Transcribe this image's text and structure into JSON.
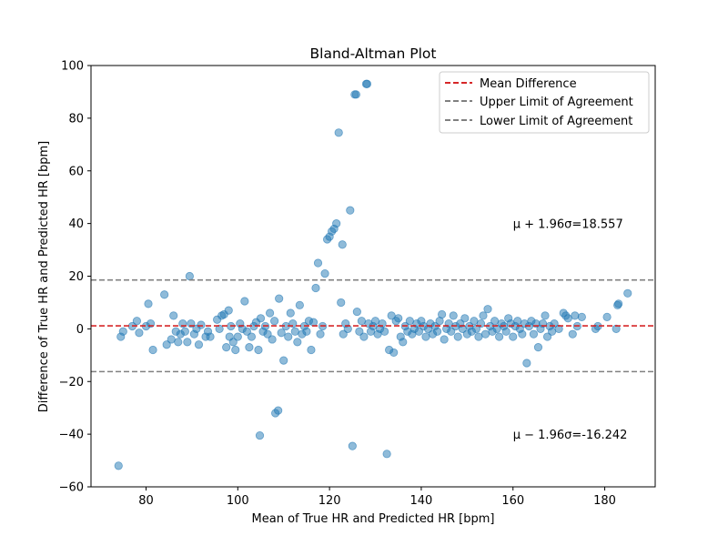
{
  "chart_data": {
    "type": "scatter",
    "title": "Bland-Altman Plot",
    "xlabel": "Mean of True HR and Predicted HR [bpm]",
    "ylabel": "Difference of True HR and Predicted HR [bpm]",
    "xlim": [
      68,
      191
    ],
    "ylim": [
      -60,
      100
    ],
    "xticks": [
      80,
      100,
      120,
      140,
      160,
      180
    ],
    "yticks": [
      -60,
      -40,
      -20,
      0,
      20,
      40,
      60,
      80,
      100
    ],
    "grid": false,
    "legend_position": "top-right",
    "point_color": "#1f77b4",
    "point_alpha": 0.5,
    "lines": [
      {
        "name": "Mean Difference",
        "y": 1.157,
        "color": "#d62728",
        "style": "dashed"
      },
      {
        "name": "Upper Limit of Agreement",
        "y": 18.557,
        "color": "#808080",
        "style": "dashed"
      },
      {
        "name": "Lower Limit of Agreement",
        "y": -16.242,
        "color": "#808080",
        "style": "dashed"
      }
    ],
    "annotations": [
      {
        "text_prefix": "μ + 1.96σ=",
        "value": "18.557",
        "x": 160,
        "y": 40
      },
      {
        "text_prefix": "μ − 1.96σ=",
        "value": "-16.242",
        "x": 160,
        "y": -40
      }
    ],
    "points": [
      [
        74,
        -52
      ],
      [
        74.5,
        -3
      ],
      [
        75,
        -1
      ],
      [
        77,
        1
      ],
      [
        78,
        3
      ],
      [
        78.5,
        -1.5
      ],
      [
        80,
        1
      ],
      [
        80.5,
        9.5
      ],
      [
        81,
        2
      ],
      [
        81.5,
        -8
      ],
      [
        84,
        13
      ],
      [
        84.5,
        -6
      ],
      [
        85.5,
        -4
      ],
      [
        86,
        5
      ],
      [
        86.5,
        -1
      ],
      [
        87,
        -5
      ],
      [
        87.5,
        -2
      ],
      [
        88,
        2
      ],
      [
        88.5,
        -1
      ],
      [
        89,
        -5
      ],
      [
        89.5,
        20
      ],
      [
        89.8,
        2
      ],
      [
        90.5,
        -2
      ],
      [
        91,
        0
      ],
      [
        91.5,
        -6
      ],
      [
        92,
        1.5
      ],
      [
        93,
        -3
      ],
      [
        93.5,
        -1
      ],
      [
        94,
        -3
      ],
      [
        95.5,
        3.5
      ],
      [
        96,
        0
      ],
      [
        96.5,
        5
      ],
      [
        97,
        5.5
      ],
      [
        97.5,
        -7
      ],
      [
        98,
        7
      ],
      [
        98.2,
        -3
      ],
      [
        98.5,
        1
      ],
      [
        99,
        -5
      ],
      [
        99.5,
        -8
      ],
      [
        100,
        -3
      ],
      [
        100.5,
        2
      ],
      [
        101,
        0
      ],
      [
        101.5,
        10.5
      ],
      [
        102,
        -1
      ],
      [
        102.5,
        -7
      ],
      [
        103,
        -3
      ],
      [
        103.5,
        1
      ],
      [
        104,
        2.5
      ],
      [
        104.5,
        -8
      ],
      [
        104.8,
        -40.5
      ],
      [
        105,
        4
      ],
      [
        105.5,
        -1
      ],
      [
        106,
        1
      ],
      [
        106.5,
        -2
      ],
      [
        107,
        6
      ],
      [
        107.5,
        -4
      ],
      [
        108,
        3
      ],
      [
        108.2,
        -32
      ],
      [
        108.8,
        -31
      ],
      [
        109,
        11.5
      ],
      [
        109.5,
        -1.5
      ],
      [
        110,
        -12
      ],
      [
        110.5,
        1
      ],
      [
        111,
        -3
      ],
      [
        111.5,
        6
      ],
      [
        112,
        2
      ],
      [
        112.5,
        -1
      ],
      [
        113,
        -5
      ],
      [
        113.5,
        9
      ],
      [
        114,
        -2
      ],
      [
        114.5,
        1
      ],
      [
        115,
        -1
      ],
      [
        115.5,
        3
      ],
      [
        116,
        -8
      ],
      [
        116.5,
        2.5
      ],
      [
        117,
        15.5
      ],
      [
        117.5,
        25
      ],
      [
        118,
        -2
      ],
      [
        118.5,
        1
      ],
      [
        119,
        21
      ],
      [
        119.5,
        34
      ],
      [
        120,
        35
      ],
      [
        120.5,
        37
      ],
      [
        121,
        38
      ],
      [
        121.5,
        40
      ],
      [
        122,
        74.5
      ],
      [
        122.5,
        10
      ],
      [
        122.8,
        32
      ],
      [
        123,
        -2
      ],
      [
        123.5,
        2
      ],
      [
        124,
        0
      ],
      [
        124.5,
        45
      ],
      [
        125,
        -44.5
      ],
      [
        125.5,
        89
      ],
      [
        125.8,
        89
      ],
      [
        126,
        6.5
      ],
      [
        126.5,
        -1
      ],
      [
        127,
        3
      ],
      [
        127.5,
        -3
      ],
      [
        128,
        93
      ],
      [
        128.2,
        93
      ],
      [
        128.5,
        2
      ],
      [
        129,
        -1
      ],
      [
        129.5,
        1
      ],
      [
        130,
        3
      ],
      [
        130.5,
        -2
      ],
      [
        131,
        0
      ],
      [
        131.5,
        2
      ],
      [
        132,
        -1
      ],
      [
        132.5,
        -47.5
      ],
      [
        133,
        -8
      ],
      [
        133.5,
        5
      ],
      [
        134,
        -9
      ],
      [
        134.5,
        3
      ],
      [
        135,
        4
      ],
      [
        135.5,
        -3
      ],
      [
        136,
        -5
      ],
      [
        136.5,
        1
      ],
      [
        137,
        -1
      ],
      [
        137.5,
        3
      ],
      [
        138,
        -2
      ],
      [
        138.5,
        0
      ],
      [
        139,
        2
      ],
      [
        139.5,
        -1
      ],
      [
        140,
        3
      ],
      [
        140.5,
        1
      ],
      [
        141,
        -3
      ],
      [
        141.5,
        0
      ],
      [
        142,
        2
      ],
      [
        142.5,
        -2
      ],
      [
        143,
        1
      ],
      [
        143.5,
        -1
      ],
      [
        144,
        3
      ],
      [
        144.5,
        5.5
      ],
      [
        145,
        -4
      ],
      [
        145.5,
        0
      ],
      [
        146,
        2
      ],
      [
        146.5,
        -1
      ],
      [
        147,
        5
      ],
      [
        147.5,
        1
      ],
      [
        148,
        -3
      ],
      [
        148.5,
        2
      ],
      [
        149,
        0
      ],
      [
        149.5,
        4
      ],
      [
        150,
        -2
      ],
      [
        150.5,
        1
      ],
      [
        151,
        -1
      ],
      [
        151.5,
        3
      ],
      [
        152,
        0
      ],
      [
        152.5,
        -3
      ],
      [
        153,
        2
      ],
      [
        153.5,
        5
      ],
      [
        154,
        -2
      ],
      [
        154.5,
        7.5
      ],
      [
        155,
        1
      ],
      [
        155.5,
        -1
      ],
      [
        156,
        3
      ],
      [
        156.5,
        0
      ],
      [
        157,
        -3
      ],
      [
        157.5,
        2
      ],
      [
        158,
        1
      ],
      [
        158.5,
        -1
      ],
      [
        159,
        4
      ],
      [
        159.5,
        2
      ],
      [
        160,
        -3
      ],
      [
        160.5,
        1
      ],
      [
        161,
        3
      ],
      [
        161.5,
        0
      ],
      [
        162,
        -2
      ],
      [
        162.5,
        2
      ],
      [
        163,
        -13
      ],
      [
        163.5,
        1
      ],
      [
        164,
        3
      ],
      [
        164.5,
        -2
      ],
      [
        165,
        2
      ],
      [
        165.5,
        -7
      ],
      [
        166,
        0
      ],
      [
        166.5,
        2
      ],
      [
        167,
        5
      ],
      [
        167.5,
        -3
      ],
      [
        168,
        1
      ],
      [
        168.5,
        -1
      ],
      [
        169,
        2
      ],
      [
        170,
        0
      ],
      [
        171,
        6
      ],
      [
        171.5,
        5
      ],
      [
        172,
        4
      ],
      [
        173,
        -2
      ],
      [
        173.5,
        5
      ],
      [
        174,
        1
      ],
      [
        175,
        4.5
      ],
      [
        178,
        0
      ],
      [
        178.5,
        1
      ],
      [
        180.5,
        4.5
      ],
      [
        182.5,
        0
      ],
      [
        182.8,
        9
      ],
      [
        183,
        9.5
      ],
      [
        185,
        13.5
      ]
    ]
  },
  "legend": {
    "items": [
      {
        "label": "Mean Difference",
        "color": "#d62728"
      },
      {
        "label": "Upper Limit of Agreement",
        "color": "#808080"
      },
      {
        "label": "Lower Limit of Agreement",
        "color": "#808080"
      }
    ]
  }
}
